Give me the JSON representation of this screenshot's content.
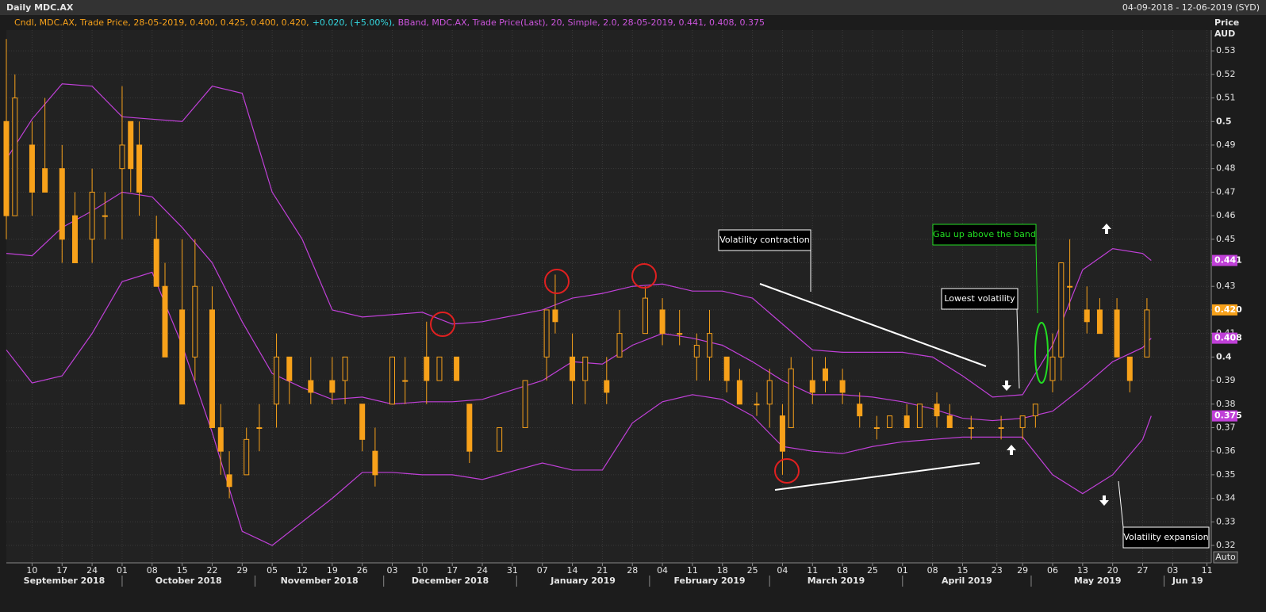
{
  "header": {
    "title": "Daily MDC.AX",
    "range": "04-09-2018 - 12-06-2019 (SYD)"
  },
  "chart_data": {
    "type": "candlestick",
    "legend": [
      {
        "text": "Cndl, MDC.AX, Trade Price, 28-05-2019, 0.400, 0.425, 0.400, 0.420,",
        "color": "#f7a11a"
      },
      {
        "text": "+0.020, (+5.00%),",
        "color": "#34d8e0"
      },
      {
        "text": "BBand, MDC.AX, Trade Price(Last), 20, Simple, 2.0, 28-05-2019, 0.441, 0.408, 0.375",
        "color": "#cc55dd"
      }
    ],
    "y_axis_title": [
      "Price",
      "AUD"
    ],
    "scale_mode": "Auto",
    "xlim": [
      "2018-09-04",
      "2019-06-12"
    ],
    "ylim": [
      0.3126,
      0.5388
    ],
    "yticks": [
      0.32,
      0.33,
      0.34,
      0.35,
      0.36,
      0.37,
      0.38,
      0.39,
      0.4,
      0.41,
      0.42,
      0.43,
      0.44,
      0.45,
      0.46,
      0.47,
      0.48,
      0.49,
      0.5,
      0.51,
      0.52,
      0.53
    ],
    "xticks": [
      {
        "value": "2018-09-10",
        "label": "10"
      },
      {
        "value": "2018-09-17",
        "label": "17"
      },
      {
        "value": "2018-09-24",
        "label": "24"
      },
      {
        "value": "2018-10-01",
        "label": "01"
      },
      {
        "value": "2018-10-08",
        "label": "08"
      },
      {
        "value": "2018-10-15",
        "label": "15"
      },
      {
        "value": "2018-10-22",
        "label": "22"
      },
      {
        "value": "2018-10-29",
        "label": "29"
      },
      {
        "value": "2018-11-05",
        "label": "05"
      },
      {
        "value": "2018-11-12",
        "label": "12"
      },
      {
        "value": "2018-11-19",
        "label": "19"
      },
      {
        "value": "2018-11-26",
        "label": "26"
      },
      {
        "value": "2018-12-03",
        "label": "03"
      },
      {
        "value": "2018-12-10",
        "label": "10"
      },
      {
        "value": "2018-12-17",
        "label": "17"
      },
      {
        "value": "2018-12-24",
        "label": "24"
      },
      {
        "value": "2018-12-31",
        "label": "31"
      },
      {
        "value": "2019-01-07",
        "label": "07"
      },
      {
        "value": "2019-01-14",
        "label": "14"
      },
      {
        "value": "2019-01-21",
        "label": "21"
      },
      {
        "value": "2019-01-28",
        "label": "28"
      },
      {
        "value": "2019-02-04",
        "label": "04"
      },
      {
        "value": "2019-02-11",
        "label": "11"
      },
      {
        "value": "2019-02-18",
        "label": "18"
      },
      {
        "value": "2019-02-25",
        "label": "25"
      },
      {
        "value": "2019-03-04",
        "label": "04"
      },
      {
        "value": "2019-03-11",
        "label": "11"
      },
      {
        "value": "2019-03-18",
        "label": "18"
      },
      {
        "value": "2019-03-25",
        "label": "25"
      },
      {
        "value": "2019-04-01",
        "label": "01"
      },
      {
        "value": "2019-04-08",
        "label": "08"
      },
      {
        "value": "2019-04-15",
        "label": "15"
      },
      {
        "value": "2019-04-23",
        "label": "23"
      },
      {
        "value": "2019-04-29",
        "label": "29"
      },
      {
        "value": "2019-05-06",
        "label": "06"
      },
      {
        "value": "2019-05-13",
        "label": "13"
      },
      {
        "value": "2019-05-20",
        "label": "20"
      },
      {
        "value": "2019-05-27",
        "label": "27"
      },
      {
        "value": "2019-06-03",
        "label": "03"
      },
      {
        "value": "2019-06-11",
        "label": "11"
      }
    ],
    "month_ticks": [
      {
        "value": "2018-09",
        "label": "September 2018"
      },
      {
        "value": "2018-10",
        "label": "October 2018"
      },
      {
        "value": "2018-11",
        "label": "November 2018"
      },
      {
        "value": "2018-12",
        "label": "December 2018"
      },
      {
        "value": "2019-01",
        "label": "January 2019"
      },
      {
        "value": "2019-02",
        "label": "February 2019"
      },
      {
        "value": "2019-03",
        "label": "March 2019"
      },
      {
        "value": "2019-04",
        "label": "April 2019"
      },
      {
        "value": "2019-05",
        "label": "May 2019"
      },
      {
        "value": "2019-06",
        "label": "Jun 19"
      }
    ],
    "grid": true,
    "candles": {
      "color": "#f7a11a",
      "x": [
        "2018-09-04",
        "2018-09-06",
        "2018-09-10",
        "2018-09-13",
        "2018-09-17",
        "2018-09-20",
        "2018-09-24",
        "2018-09-27",
        "2018-10-01",
        "2018-10-03",
        "2018-10-05",
        "2018-10-09",
        "2018-10-11",
        "2018-10-15",
        "2018-10-18",
        "2018-10-22",
        "2018-10-24",
        "2018-10-26",
        "2018-10-30",
        "2018-11-02",
        "2018-11-06",
        "2018-11-09",
        "2018-11-14",
        "2018-11-19",
        "2018-11-22",
        "2018-11-26",
        "2018-11-29",
        "2018-12-03",
        "2018-12-06",
        "2018-12-11",
        "2018-12-14",
        "2018-12-18",
        "2018-12-21",
        "2018-12-28",
        "2019-01-03",
        "2019-01-08",
        "2019-01-10",
        "2019-01-14",
        "2019-01-17",
        "2019-01-22",
        "2019-01-25",
        "2019-01-31",
        "2019-02-04",
        "2019-02-08",
        "2019-02-12",
        "2019-02-15",
        "2019-02-19",
        "2019-02-22",
        "2019-02-26",
        "2019-03-01",
        "2019-03-04",
        "2019-03-06",
        "2019-03-11",
        "2019-03-14",
        "2019-03-18",
        "2019-03-22",
        "2019-03-26",
        "2019-03-29",
        "2019-04-02",
        "2019-04-05",
        "2019-04-09",
        "2019-04-12",
        "2019-04-17",
        "2019-04-24",
        "2019-04-29",
        "2019-05-02",
        "2019-05-06",
        "2019-05-08",
        "2019-05-10",
        "2019-05-14",
        "2019-05-17",
        "2019-05-21",
        "2019-05-24",
        "2019-05-28"
      ],
      "open": [
        0.5,
        0.46,
        0.49,
        0.48,
        0.48,
        0.46,
        0.45,
        0.46,
        0.48,
        0.5,
        0.49,
        0.45,
        0.43,
        0.42,
        0.4,
        0.42,
        0.37,
        0.35,
        0.35,
        0.37,
        0.38,
        0.4,
        0.39,
        0.39,
        0.39,
        0.38,
        0.36,
        0.38,
        0.39,
        0.4,
        0.39,
        0.4,
        0.38,
        0.36,
        0.37,
        0.4,
        0.42,
        0.4,
        0.39,
        0.39,
        0.4,
        0.41,
        0.42,
        0.41,
        0.4,
        0.4,
        0.4,
        0.39,
        0.38,
        0.38,
        0.375,
        0.37,
        0.39,
        0.395,
        0.39,
        0.38,
        0.37,
        0.37,
        0.375,
        0.37,
        0.38,
        0.375,
        0.37,
        0.37,
        0.37,
        0.375,
        0.39,
        0.4,
        0.43,
        0.42,
        0.42,
        0.42,
        0.4,
        0.4
      ],
      "high": [
        0.535,
        0.52,
        0.5,
        0.51,
        0.49,
        0.47,
        0.48,
        0.47,
        0.515,
        0.5,
        0.5,
        0.46,
        0.44,
        0.45,
        0.45,
        0.43,
        0.38,
        0.36,
        0.37,
        0.38,
        0.41,
        0.4,
        0.4,
        0.4,
        0.4,
        0.38,
        0.37,
        0.4,
        0.4,
        0.415,
        0.4,
        0.4,
        0.38,
        0.37,
        0.39,
        0.42,
        0.435,
        0.41,
        0.4,
        0.4,
        0.42,
        0.43,
        0.425,
        0.42,
        0.41,
        0.42,
        0.4,
        0.395,
        0.385,
        0.395,
        0.38,
        0.4,
        0.4,
        0.4,
        0.395,
        0.385,
        0.375,
        0.375,
        0.38,
        0.38,
        0.385,
        0.38,
        0.375,
        0.375,
        0.375,
        0.38,
        0.41,
        0.44,
        0.45,
        0.43,
        0.425,
        0.425,
        0.4,
        0.425
      ],
      "low": [
        0.45,
        0.46,
        0.46,
        0.47,
        0.44,
        0.44,
        0.44,
        0.45,
        0.45,
        0.47,
        0.46,
        0.43,
        0.4,
        0.38,
        0.39,
        0.37,
        0.35,
        0.34,
        0.35,
        0.36,
        0.37,
        0.38,
        0.38,
        0.38,
        0.38,
        0.36,
        0.345,
        0.38,
        0.38,
        0.38,
        0.39,
        0.39,
        0.355,
        0.36,
        0.37,
        0.39,
        0.41,
        0.38,
        0.38,
        0.38,
        0.4,
        0.41,
        0.405,
        0.405,
        0.39,
        0.39,
        0.385,
        0.38,
        0.375,
        0.37,
        0.35,
        0.37,
        0.38,
        0.385,
        0.38,
        0.37,
        0.365,
        0.37,
        0.37,
        0.37,
        0.37,
        0.37,
        0.365,
        0.365,
        0.365,
        0.37,
        0.385,
        0.39,
        0.42,
        0.41,
        0.41,
        0.4,
        0.385,
        0.4
      ],
      "close": [
        0.46,
        0.51,
        0.47,
        0.47,
        0.45,
        0.44,
        0.47,
        0.46,
        0.49,
        0.48,
        0.47,
        0.43,
        0.4,
        0.38,
        0.43,
        0.37,
        0.36,
        0.345,
        0.365,
        0.37,
        0.4,
        0.39,
        0.385,
        0.385,
        0.4,
        0.365,
        0.35,
        0.4,
        0.39,
        0.39,
        0.4,
        0.39,
        0.36,
        0.37,
        0.39,
        0.42,
        0.415,
        0.39,
        0.4,
        0.385,
        0.41,
        0.425,
        0.41,
        0.41,
        0.405,
        0.41,
        0.39,
        0.38,
        0.38,
        0.39,
        0.36,
        0.395,
        0.385,
        0.39,
        0.385,
        0.375,
        0.37,
        0.375,
        0.37,
        0.38,
        0.375,
        0.37,
        0.37,
        0.37,
        0.375,
        0.38,
        0.4,
        0.44,
        0.43,
        0.415,
        0.41,
        0.4,
        0.39,
        0.42
      ]
    },
    "bands": {
      "color": "#c040d8",
      "x": [
        "2018-09-04",
        "2018-09-10",
        "2018-09-17",
        "2018-09-24",
        "2018-10-01",
        "2018-10-08",
        "2018-10-15",
        "2018-10-22",
        "2018-10-29",
        "2018-11-05",
        "2018-11-12",
        "2018-11-19",
        "2018-11-26",
        "2018-12-03",
        "2018-12-10",
        "2018-12-17",
        "2018-12-24",
        "2019-01-07",
        "2019-01-14",
        "2019-01-21",
        "2019-01-28",
        "2019-02-04",
        "2019-02-11",
        "2019-02-18",
        "2019-02-25",
        "2019-03-04",
        "2019-03-11",
        "2019-03-18",
        "2019-03-25",
        "2019-04-01",
        "2019-04-08",
        "2019-04-15",
        "2019-04-22",
        "2019-04-29",
        "2019-05-06",
        "2019-05-13",
        "2019-05-20",
        "2019-05-27",
        "2019-05-29"
      ],
      "upper": [
        0.484,
        0.501,
        0.516,
        0.515,
        0.502,
        0.501,
        0.5,
        0.515,
        0.512,
        0.47,
        0.45,
        0.42,
        0.417,
        0.418,
        0.419,
        0.414,
        0.415,
        0.42,
        0.425,
        0.427,
        0.43,
        0.431,
        0.428,
        0.428,
        0.425,
        0.414,
        0.403,
        0.402,
        0.402,
        0.402,
        0.4,
        0.392,
        0.383,
        0.384,
        0.405,
        0.437,
        0.446,
        0.444,
        0.441
      ],
      "middle": [
        0.444,
        0.443,
        0.455,
        0.462,
        0.47,
        0.468,
        0.455,
        0.44,
        0.415,
        0.393,
        0.387,
        0.382,
        0.383,
        0.38,
        0.381,
        0.381,
        0.382,
        0.39,
        0.398,
        0.397,
        0.405,
        0.41,
        0.408,
        0.405,
        0.398,
        0.39,
        0.384,
        0.384,
        0.383,
        0.381,
        0.378,
        0.374,
        0.373,
        0.374,
        0.377,
        0.387,
        0.398,
        0.404,
        0.408
      ],
      "lower": [
        0.403,
        0.389,
        0.392,
        0.41,
        0.432,
        0.436,
        0.405,
        0.368,
        0.326,
        0.32,
        0.33,
        0.34,
        0.351,
        0.351,
        0.35,
        0.35,
        0.348,
        0.355,
        0.352,
        0.352,
        0.372,
        0.381,
        0.384,
        0.382,
        0.375,
        0.362,
        0.36,
        0.359,
        0.362,
        0.364,
        0.365,
        0.366,
        0.366,
        0.366,
        0.35,
        0.342,
        0.35,
        0.365,
        0.375
      ]
    },
    "price_markers": [
      {
        "value": 0.441,
        "color": "#c040d8"
      },
      {
        "value": 0.42,
        "label": "0.420",
        "color": "#f7a11a"
      },
      {
        "value": 0.408,
        "color": "#c040d8"
      },
      {
        "value": 0.375,
        "color": "#c040d8"
      }
    ],
    "annotations": [
      "Volatility contraction",
      "Lowest volatility",
      "Gau up above the band",
      "Volatility expansion"
    ]
  }
}
